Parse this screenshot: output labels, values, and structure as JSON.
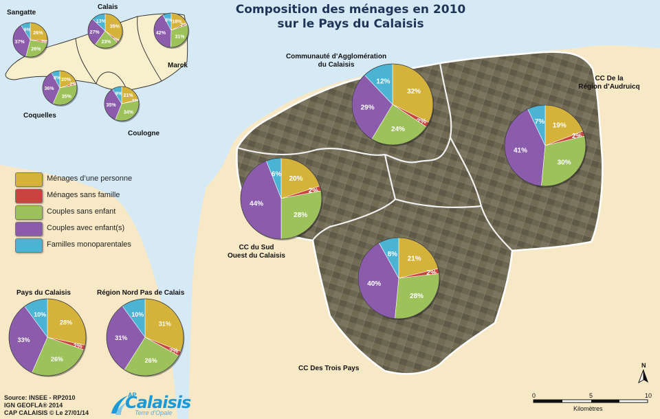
{
  "title": "Composition des ménages en 2010\nsur le Pays du Calaisis",
  "title_line1": "Composition des ménages en 2010",
  "title_line2": "sur le Pays du Calaisis",
  "colors": {
    "menages_une_personne": "#d5b23a",
    "menages_sans_famille": "#c8453f",
    "couples_sans_enfant": "#9dc25b",
    "couples_avec_enfants": "#8b5cab",
    "familles_monoparentales": "#4bb3d3",
    "sea": "#d6eaf6",
    "land": "#f7e8c6"
  },
  "legend": [
    {
      "label": "Ménages d’une personne",
      "color": "#d5b23a"
    },
    {
      "label": "Ménages sans famille",
      "color": "#c8453f"
    },
    {
      "label": "Couples sans enfant",
      "color": "#9dc25b"
    },
    {
      "label": "Couples avec enfant(s)",
      "color": "#8b5cab"
    },
    {
      "label": "Familles monoparentales",
      "color": "#4bb3d3"
    }
  ],
  "chart_data": [
    {
      "type": "pie",
      "name": "Communauté d’Agglomération\ndu Calaisis",
      "labels": [
        "Ménages d’une personne",
        "Ménages sans famille",
        "Couples sans enfant",
        "Couples avec enfant(s)",
        "Familles monoparentales"
      ],
      "values": [
        32,
        2,
        24,
        29,
        12
      ],
      "value_labels": [
        "32%",
        "2%",
        "24%",
        "29%",
        "12%"
      ]
    },
    {
      "type": "pie",
      "name": "CC De la\nRégion d’Audruicq",
      "labels": [
        "Ménages d’une personne",
        "Ménages sans famille",
        "Couples sans enfant",
        "Couples avec enfant(s)",
        "Familles monoparentales"
      ],
      "values": [
        19,
        2,
        30,
        41,
        7
      ],
      "value_labels": [
        "19%",
        "2%",
        "30%",
        "41%",
        "7%"
      ]
    },
    {
      "type": "pie",
      "name": "CC du Sud\nOuest du Calaisis",
      "labels": [
        "Ménages d’une personne",
        "Ménages sans famille",
        "Couples sans enfant",
        "Couples avec enfant(s)",
        "Familles monoparentales"
      ],
      "values": [
        20,
        2,
        28,
        44,
        6
      ],
      "value_labels": [
        "20%",
        "2%",
        "28%",
        "44%",
        "6%"
      ]
    },
    {
      "type": "pie",
      "name": "CC Des Trois Pays",
      "labels": [
        "Ménages d’une personne",
        "Ménages sans famille",
        "Couples sans enfant",
        "Couples avec enfant(s)",
        "Familles monoparentales"
      ],
      "values": [
        21,
        2,
        28,
        40,
        8
      ],
      "value_labels": [
        "21%",
        "2%",
        "28%",
        "40%",
        "8%"
      ]
    },
    {
      "type": "pie",
      "name": "Pays du Calaisis",
      "labels": [
        "Ménages d’une personne",
        "Ménages sans famille",
        "Couples sans enfant",
        "Couples avec enfant(s)",
        "Familles monoparentales"
      ],
      "values": [
        28,
        2,
        26,
        33,
        10
      ],
      "value_labels": [
        "28%",
        "2%",
        "26%",
        "33%",
        "10%"
      ]
    },
    {
      "type": "pie",
      "name": "Région Nord Pas de Calais",
      "labels": [
        "Ménages d’une personne",
        "Ménages sans famille",
        "Couples sans enfant",
        "Couples avec enfant(s)",
        "Familles monoparentales"
      ],
      "values": [
        31,
        2,
        26,
        31,
        10
      ],
      "value_labels": [
        "31%",
        "2%",
        "26%",
        "31%",
        "10%"
      ]
    },
    {
      "type": "pie",
      "name": "Sangatte",
      "labels": [
        "Ménages d’une personne",
        "Ménages sans famille",
        "Couples sans enfant",
        "Couples avec enfant(s)",
        "Familles monoparentales"
      ],
      "values": [
        26,
        2,
        26,
        37,
        9
      ],
      "value_labels": [
        "26%",
        "2%",
        "26%",
        "37%",
        "9%"
      ]
    },
    {
      "type": "pie",
      "name": "Calais",
      "labels": [
        "Ménages d’une personne",
        "Ménages sans famille",
        "Couples sans enfant",
        "Couples avec enfant(s)",
        "Familles monoparentales"
      ],
      "values": [
        35,
        2,
        23,
        27,
        13
      ],
      "value_labels": [
        "35%",
        "2%",
        "23%",
        "27%",
        "13%"
      ]
    },
    {
      "type": "pie",
      "name": "Marck",
      "labels": [
        "Ménages d’une personne",
        "Ménages sans famille",
        "Couples sans enfant",
        "Couples avec enfant(s)",
        "Familles monoparentales"
      ],
      "values": [
        18,
        2,
        31,
        42,
        8
      ],
      "value_labels": [
        "18%",
        "2%",
        "31%",
        "42%",
        "8%"
      ]
    },
    {
      "type": "pie",
      "name": "Coquelles",
      "labels": [
        "Ménages d’une personne",
        "Ménages sans famille",
        "Couples sans enfant",
        "Couples avec enfant(s)",
        "Familles monoparentales"
      ],
      "values": [
        20,
        2,
        35,
        36,
        8
      ],
      "value_labels": [
        "20%",
        "2%",
        "35%",
        "36%",
        "8%"
      ]
    },
    {
      "type": "pie",
      "name": "Coulogne",
      "labels": [
        "Ménages d’une personne",
        "Ménages sans famille",
        "Couples sans enfant",
        "Couples avec enfant(s)",
        "Familles monoparentales"
      ],
      "values": [
        21,
        1,
        34,
        35,
        9
      ],
      "value_labels": [
        "21%",
        "1%",
        "34%",
        "35%",
        "9%"
      ]
    }
  ],
  "labels": {
    "cac": "Communauté d’Agglomération\ndu Calaisis",
    "audruicq": "CC De la\nRégion d’Audruicq",
    "sud_ouest": "CC du Sud\nOuest du Calaisis",
    "trois_pays": "CC Des Trois Pays",
    "pays": "Pays du Calaisis",
    "region": "Région Nord Pas de Calais",
    "sangatte": "Sangatte",
    "calais": "Calais",
    "marck": "Marck",
    "coquelles": "Coquelles",
    "coulogne": "Coulogne"
  },
  "source": [
    "Source: INSEE - RP2010",
    "IGN GEOFLA® 2014",
    "CAP CALAISIS © Le 27/01/14"
  ],
  "logo": {
    "main": "Calaisis",
    "prefix": "AP",
    "sub": "Terre d’Opale"
  },
  "north_label": "N",
  "scale": {
    "ticks": [
      "0",
      "5",
      "10"
    ],
    "unit": "Kilomètres"
  }
}
